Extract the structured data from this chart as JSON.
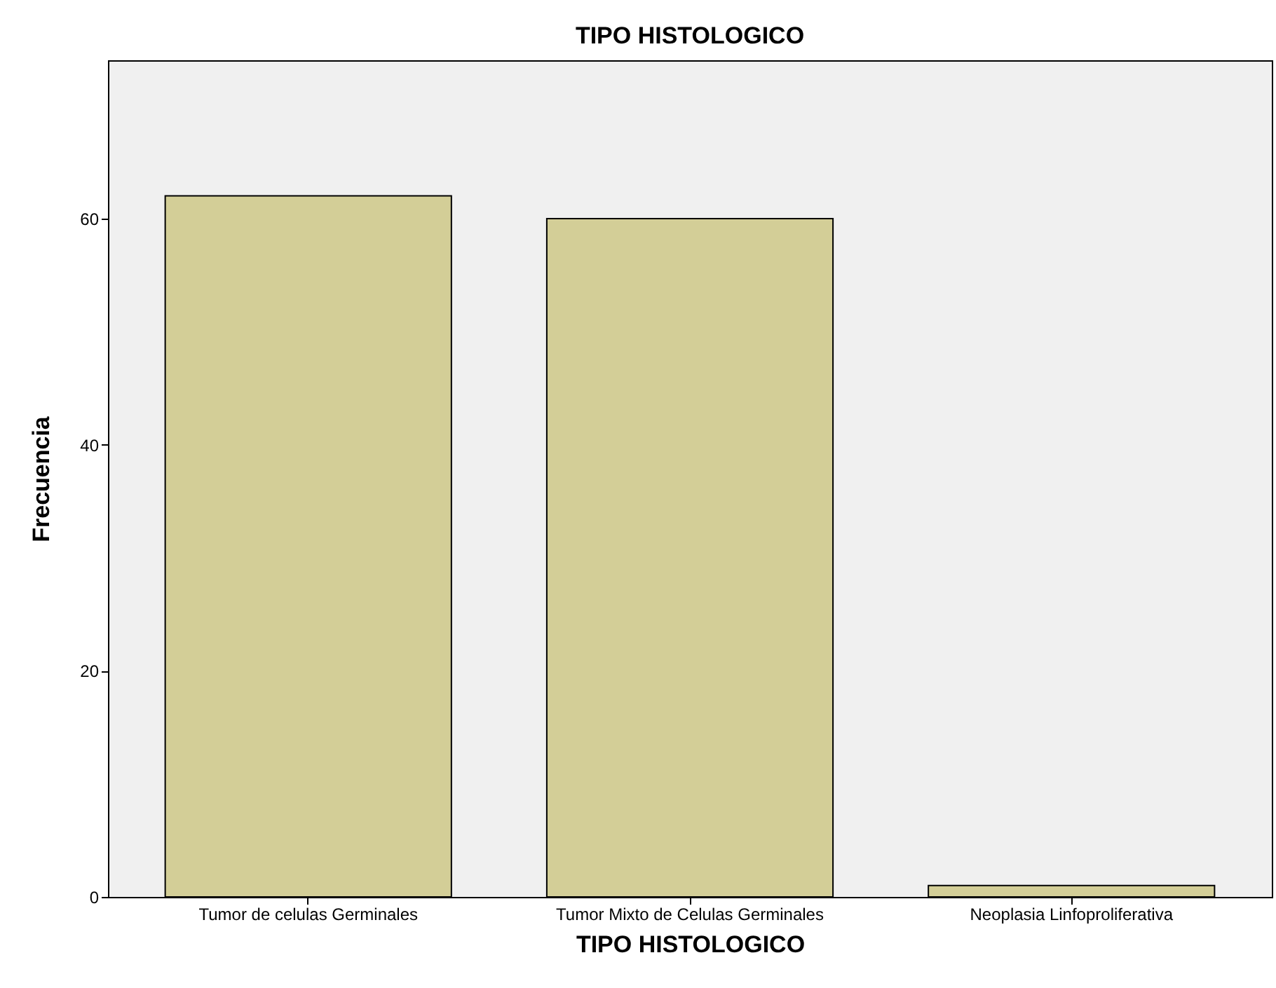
{
  "chart_data": {
    "type": "bar",
    "title": "TIPO HISTOLOGICO",
    "xlabel": "TIPO HISTOLOGICO",
    "ylabel": "Frecuencia",
    "categories": [
      "Tumor de celulas Germinales",
      "Tumor Mixto de Celulas Germinales",
      "Neoplasia Linfoproliferativa"
    ],
    "values": [
      62,
      60,
      1
    ],
    "color": "#d3ce97",
    "ylim": [
      0,
      74
    ],
    "yticks": [
      0,
      20,
      40,
      60
    ],
    "grid": false
  }
}
